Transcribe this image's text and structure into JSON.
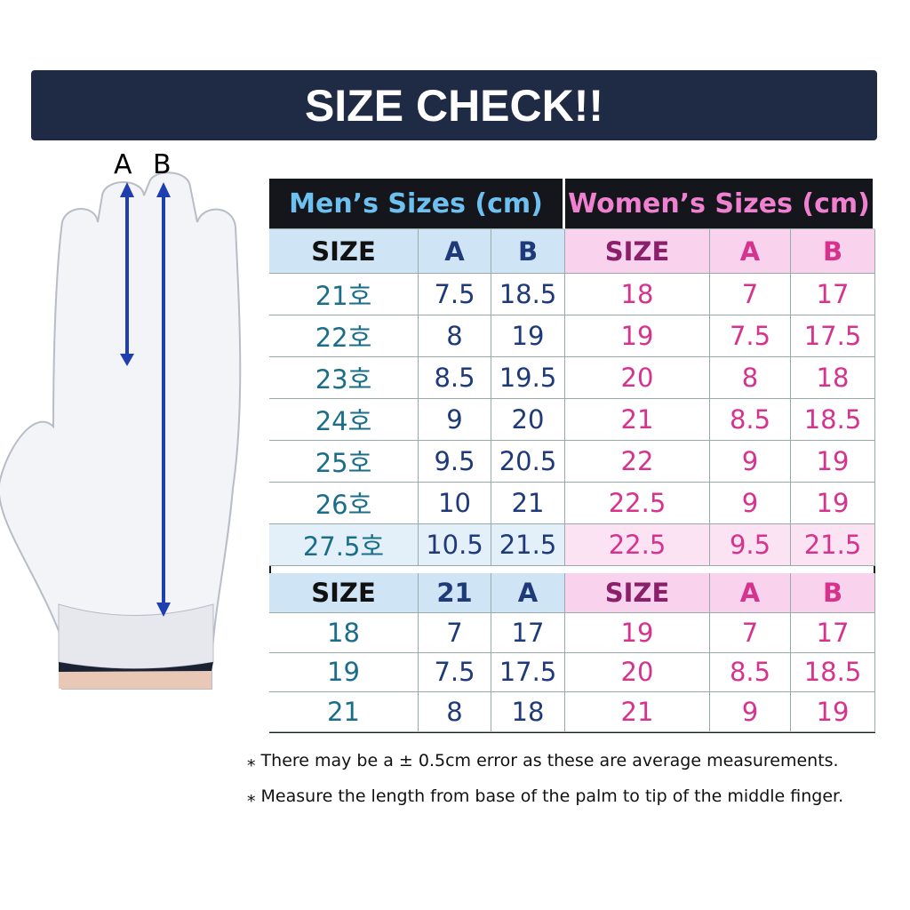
{
  "header": {
    "title": "SIZE CHECK!!"
  },
  "glove": {
    "labels": [
      "A",
      "B"
    ]
  },
  "table": {
    "mens": {
      "title": "Men’s Sizes (cm)",
      "header": [
        "SIZE",
        "A",
        "B"
      ],
      "rows": [
        [
          "21호",
          "7.5",
          "18.5"
        ],
        [
          "22호",
          "8",
          "19"
        ],
        [
          "23호",
          "8.5",
          "19.5"
        ],
        [
          "24호",
          "9",
          "20"
        ],
        [
          "25호",
          "9.5",
          "20.5"
        ],
        [
          "26호",
          "10",
          "21"
        ],
        [
          "27.5호",
          "10.5",
          "21.5"
        ]
      ],
      "header2": [
        "SIZE",
        "21",
        "A"
      ],
      "rows2": [
        [
          "18",
          "7",
          "17"
        ],
        [
          "19",
          "7.5",
          "17.5"
        ],
        [
          "21",
          "8",
          "18"
        ]
      ]
    },
    "womens": {
      "title": "Women’s Sizes (cm)",
      "header": [
        "SIZE",
        "A",
        "B"
      ],
      "rows": [
        [
          "18",
          "7",
          "17"
        ],
        [
          "19",
          "7.5",
          "17.5"
        ],
        [
          "20",
          "8",
          "18"
        ],
        [
          "21",
          "8.5",
          "18.5"
        ],
        [
          "22",
          "9",
          "19"
        ],
        [
          "22.5",
          "9",
          "19"
        ],
        [
          "22.5",
          "9.5",
          "21.5"
        ]
      ],
      "header2": [
        "SIZE",
        "A",
        "B"
      ],
      "rows2": [
        [
          "19",
          "7",
          "17"
        ],
        [
          "20",
          "8.5",
          "18.5"
        ],
        [
          "21",
          "9",
          "19"
        ]
      ]
    }
  },
  "notes": [
    "⁎ There may be a ± 0.5cm error as these are average measurements.",
    "⁎ Measure the length from base of the palm to tip of the middle finger."
  ]
}
